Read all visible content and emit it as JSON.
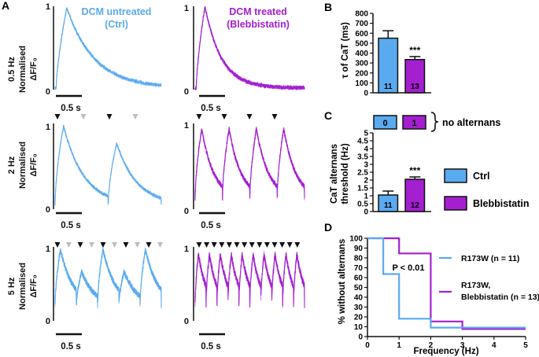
{
  "panels": {
    "A": "A",
    "B": "B",
    "C": "C",
    "D": "D"
  },
  "colors": {
    "ctrl": "#5aaaf0",
    "blebbi": "#a31fd0",
    "black": "#111111",
    "gray_marker": "#bdbdbd"
  },
  "panel_a": {
    "col_titles": {
      "ctrl_1": "DCM untreated",
      "ctrl_2": "(Ctrl)",
      "blebbi_1": "DCM treated",
      "blebbi_2": "(Blebbistatin)"
    },
    "rows": [
      {
        "freq": "0.5 Hz",
        "norm": "Normalised",
        "dff": "ΔF/F₀",
        "y_top": "1",
        "y_bottom": "0"
      },
      {
        "freq": "2 Hz",
        "norm": "Normalised",
        "dff": "ΔF/F₀",
        "y_top": "1",
        "y_bottom": "0"
      },
      {
        "freq": "5 Hz",
        "norm": "Normalised",
        "dff": "ΔF/F₀",
        "y_top": "1",
        "y_bottom": "0"
      }
    ],
    "scale_bar": "0.5 s",
    "marker_counts": {
      "hz2": 4,
      "hz5": 10,
      "hz5_treated": 14
    }
  },
  "chart_data": [
    {
      "panel": "B",
      "type": "bar",
      "ylabel": "τ of CaT (ms)",
      "ylim": [
        0,
        800
      ],
      "yticks": [
        0,
        100,
        200,
        300,
        400,
        500,
        600,
        700,
        800
      ],
      "categories": [
        "Ctrl",
        "Blebbistatin"
      ],
      "values": [
        550,
        335
      ],
      "errors": [
        75,
        30
      ],
      "n_labels": [
        "11",
        "13"
      ],
      "significance": "***"
    },
    {
      "panel": "C",
      "type": "bar",
      "ylabel_1": "CaT alternans",
      "ylabel_2": "threshold (Hz)",
      "ylim": [
        0,
        5
      ],
      "yticks": [
        0,
        0.5,
        1,
        1.5,
        2,
        2.5,
        3,
        3.5,
        4,
        4.5,
        5
      ],
      "ytick_labels": [
        "0",
        "0.5",
        "1",
        "1.5",
        "2",
        "2.5",
        "3",
        "3.5",
        "4",
        "4.5",
        "5"
      ],
      "categories": [
        "Ctrl",
        "Blebbistatin"
      ],
      "values": [
        1.05,
        2.05
      ],
      "errors": [
        0.25,
        0.15
      ],
      "n_labels": [
        "11",
        "12"
      ],
      "significance": "***",
      "no_alternans_counts": [
        "0",
        "1"
      ],
      "no_alternans_label": "no alternans",
      "legend": [
        "Ctrl",
        "Blebbistatin"
      ]
    },
    {
      "panel": "D",
      "type": "line",
      "step": true,
      "xlabel": "Frequency (Hz)",
      "ylabel": "% without alternans",
      "xlim": [
        0,
        5
      ],
      "ylim": [
        0,
        100
      ],
      "xticks": [
        0,
        1,
        2,
        3,
        4,
        5
      ],
      "yticks": [
        0,
        10,
        20,
        30,
        40,
        50,
        60,
        70,
        80,
        90,
        100
      ],
      "annotation": "P < 0.01",
      "series": [
        {
          "name_1": "R173W (n = 11)",
          "name_2": "",
          "color": "#5aaaf0",
          "x": [
            0,
            0.5,
            0.5,
            1,
            1,
            2,
            2,
            3,
            3,
            5
          ],
          "y": [
            100,
            100,
            63.6,
            63.6,
            18.2,
            18.2,
            9.1,
            9.1,
            9.1,
            9.1
          ]
        },
        {
          "name_1": "R173W,",
          "name_2": "Blebbistatin (n = 13)",
          "color": "#a31fd0",
          "x": [
            0,
            1,
            1,
            2,
            2,
            3,
            3,
            5
          ],
          "y": [
            100,
            100,
            84.6,
            84.6,
            15.4,
            15.4,
            7.7,
            7.7
          ]
        }
      ]
    }
  ]
}
